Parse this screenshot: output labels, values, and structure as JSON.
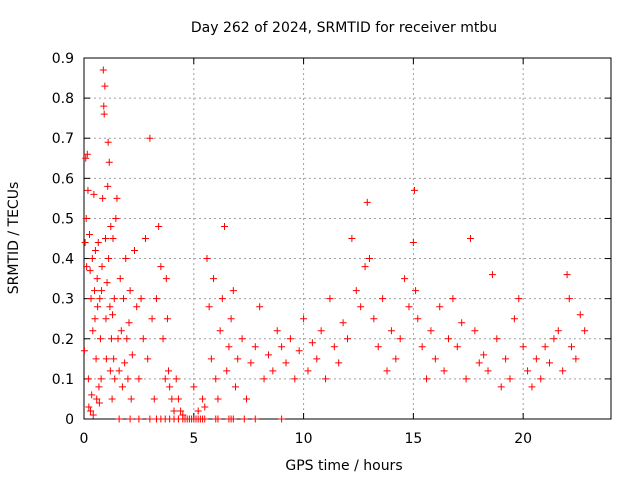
{
  "chart_data": {
    "type": "scatter",
    "title": "Day 262 of 2024, SRMTID for receiver mtbu",
    "xlabel": "GPS time / hours",
    "ylabel": "SRMTID / TECUs",
    "xlim": [
      0,
      24
    ],
    "ylim": [
      0,
      0.9
    ],
    "xticks": [
      "0",
      "5",
      "10",
      "15",
      "20"
    ],
    "yticks": [
      "0",
      "0.1",
      "0.2",
      "0.3",
      "0.4",
      "0.5",
      "0.6",
      "0.7",
      "0.8",
      "0.9"
    ],
    "grid": true,
    "marker": "plus",
    "color": "#ff0000",
    "series": [
      {
        "x": [
          0.02,
          0.05,
          0.08,
          0.1,
          0.12,
          0.15,
          0.18,
          0.2,
          0.22,
          0.25,
          0.28,
          0.3,
          0.32,
          0.35,
          0.38,
          0.4,
          0.42,
          0.45,
          0.48,
          0.5,
          0.52,
          0.55,
          0.58,
          0.6,
          0.62,
          0.65,
          0.68,
          0.7,
          0.72,
          0.75,
          0.78,
          0.8,
          0.82,
          0.85,
          0.88,
          0.9,
          0.92,
          0.95,
          0.98,
          1.0,
          1.02,
          1.05,
          1.08,
          1.1,
          1.12,
          1.15,
          1.18,
          1.2,
          1.22,
          1.25,
          1.28,
          1.3,
          1.32,
          1.35,
          1.38,
          1.4,
          1.45,
          1.5,
          1.55,
          1.6,
          1.65,
          1.7,
          1.75,
          1.8,
          1.85,
          1.9,
          1.95,
          2.0,
          2.05,
          2.1,
          2.15,
          2.2,
          2.3,
          2.4,
          2.5,
          2.6,
          2.7,
          2.8,
          2.9,
          3.0,
          3.1,
          3.2,
          3.3,
          3.4,
          3.5,
          3.6,
          3.7,
          3.75,
          3.8,
          3.85,
          3.9,
          4.0,
          4.1,
          4.2,
          4.3,
          4.4,
          4.5,
          5.0,
          5.2,
          5.4,
          5.5,
          5.6,
          5.7,
          5.8,
          5.9,
          6.0,
          6.1,
          6.2,
          6.3,
          6.4,
          6.5,
          6.6,
          6.7,
          6.8,
          6.9,
          7.0,
          7.2,
          7.4,
          7.6,
          7.8,
          8.0,
          8.2,
          8.4,
          8.6,
          8.8,
          9.0,
          9.2,
          9.4,
          9.6,
          9.8,
          10.0,
          10.2,
          10.4,
          10.6,
          10.8,
          11.0,
          11.2,
          11.4,
          11.6,
          11.8,
          12.0,
          12.2,
          12.4,
          12.6,
          12.8,
          12.9,
          13.0,
          13.2,
          13.4,
          13.6,
          13.8,
          14.0,
          14.2,
          14.4,
          14.6,
          14.8,
          15.0,
          15.05,
          15.1,
          15.2,
          15.4,
          15.6,
          15.8,
          16.0,
          16.2,
          16.4,
          16.6,
          16.8,
          17.0,
          17.2,
          17.4,
          17.6,
          17.8,
          18.0,
          18.2,
          18.4,
          18.6,
          18.8,
          19.0,
          19.2,
          19.4,
          19.6,
          19.8,
          20.0,
          20.2,
          20.4,
          20.6,
          20.8,
          21.0,
          21.2,
          21.4,
          21.6,
          21.8,
          22.0,
          22.1,
          22.2,
          22.4,
          22.6,
          22.8
        ],
        "y": [
          0.17,
          0.44,
          0.65,
          0.5,
          0.38,
          0.66,
          0.57,
          0.1,
          0.03,
          0.46,
          0.37,
          0.02,
          0.3,
          0.06,
          0.4,
          0.22,
          0.01,
          0.56,
          0.32,
          0.25,
          0.42,
          0.15,
          0.05,
          0.35,
          0.28,
          0.44,
          0.08,
          0.04,
          0.3,
          0.2,
          0.1,
          0.32,
          0.38,
          0.55,
          0.87,
          0.78,
          0.76,
          0.83,
          0.45,
          0.25,
          0.15,
          0.34,
          0.58,
          0.69,
          0.4,
          0.64,
          0.28,
          0.12,
          0.48,
          0.2,
          0.05,
          0.26,
          0.45,
          0.15,
          0.3,
          0.1,
          0.5,
          0.55,
          0.2,
          0.12,
          0.35,
          0.22,
          0.08,
          0.3,
          0.14,
          0.4,
          0.2,
          0.1,
          0.24,
          0.32,
          0.05,
          0.16,
          0.42,
          0.28,
          0.1,
          0.3,
          0.2,
          0.45,
          0.15,
          0.7,
          0.25,
          0.05,
          0.3,
          0.48,
          0.38,
          0.2,
          0.1,
          0.35,
          0.25,
          0.12,
          0.08,
          0.05,
          0.02,
          0.1,
          0.05,
          0.02,
          0.01,
          0.08,
          0.02,
          0.05,
          0.03,
          0.4,
          0.28,
          0.15,
          0.35,
          0.1,
          0.05,
          0.22,
          0.3,
          0.48,
          0.12,
          0.18,
          0.25,
          0.32,
          0.08,
          0.15,
          0.2,
          0.05,
          0.14,
          0.18,
          0.28,
          0.1,
          0.16,
          0.12,
          0.22,
          0.18,
          0.14,
          0.2,
          0.1,
          0.17,
          0.25,
          0.12,
          0.19,
          0.15,
          0.22,
          0.1,
          0.3,
          0.18,
          0.14,
          0.24,
          0.2,
          0.45,
          0.32,
          0.28,
          0.38,
          0.54,
          0.4,
          0.25,
          0.18,
          0.3,
          0.12,
          0.22,
          0.15,
          0.2,
          0.35,
          0.28,
          0.44,
          0.57,
          0.32,
          0.25,
          0.18,
          0.1,
          0.22,
          0.15,
          0.28,
          0.12,
          0.2,
          0.3,
          0.18,
          0.24,
          0.1,
          0.45,
          0.22,
          0.14,
          0.16,
          0.12,
          0.36,
          0.2,
          0.08,
          0.15,
          0.1,
          0.25,
          0.3,
          0.18,
          0.12,
          0.08,
          0.15,
          0.1,
          0.18,
          0.14,
          0.2,
          0.22,
          0.12,
          0.36,
          0.3,
          0.18,
          0.15,
          0.26,
          0.22
        ]
      },
      {
        "x": [
          1.6,
          2.1,
          2.5,
          3.0,
          3.3,
          3.5,
          3.7,
          3.9,
          4.1,
          4.3,
          4.5,
          4.6,
          4.7,
          4.8,
          4.9,
          5.0,
          5.1,
          5.2,
          5.3,
          5.4,
          5.5,
          6.0,
          6.1,
          6.6,
          6.7,
          6.8,
          7.3,
          7.8,
          9.0
        ],
        "y": [
          0,
          0,
          0,
          0,
          0,
          0,
          0,
          0,
          0,
          0,
          0,
          0,
          0,
          0,
          0,
          0,
          0,
          0,
          0,
          0,
          0,
          0,
          0,
          0,
          0,
          0,
          0,
          0,
          0
        ]
      }
    ]
  }
}
